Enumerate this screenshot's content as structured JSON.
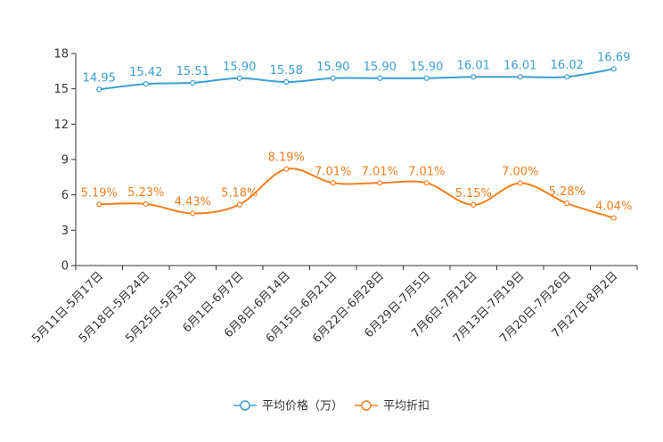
{
  "chart_data": {
    "type": "line",
    "categories": [
      "5月11日-5月17日",
      "5月18日-5月24日",
      "5月25日-5月31日",
      "6月1日-6月7日",
      "6月8日-6月14日",
      "6月15日-6月21日",
      "6月22日-6月28日",
      "6月29日-7月5日",
      "7月6日-7月12日",
      "7月13日-7月19日",
      "7月20日-7月26日",
      "7月27日-8月2日"
    ],
    "series": [
      {
        "name": "平均价格（万）",
        "color": "#3a9fd1",
        "values": [
          14.95,
          15.42,
          15.51,
          15.9,
          15.58,
          15.9,
          15.9,
          15.9,
          16.01,
          16.01,
          16.02,
          16.69
        ],
        "labels": [
          "14.95",
          "15.42",
          "15.51",
          "15.90",
          "15.58",
          "15.90",
          "15.90",
          "15.90",
          "16.01",
          "16.01",
          "16.02",
          "16.69"
        ]
      },
      {
        "name": "平均折扣",
        "color": "#f47f1f",
        "values": [
          5.19,
          5.23,
          4.43,
          5.18,
          8.19,
          7.01,
          7.01,
          7.01,
          5.15,
          7.0,
          5.28,
          4.04
        ],
        "labels": [
          "5.19%",
          "5.23%",
          "4.43%",
          "5.18%",
          "8.19%",
          "7.01%",
          "7.01%",
          "7.01%",
          "5.15%",
          "7.00%",
          "5.28%",
          "4.04%"
        ]
      }
    ],
    "yticks": [
      0,
      3,
      6,
      9,
      12,
      15,
      18
    ],
    "ylim": [
      0,
      18
    ],
    "grid": false,
    "legend_position": "bottom-center"
  }
}
